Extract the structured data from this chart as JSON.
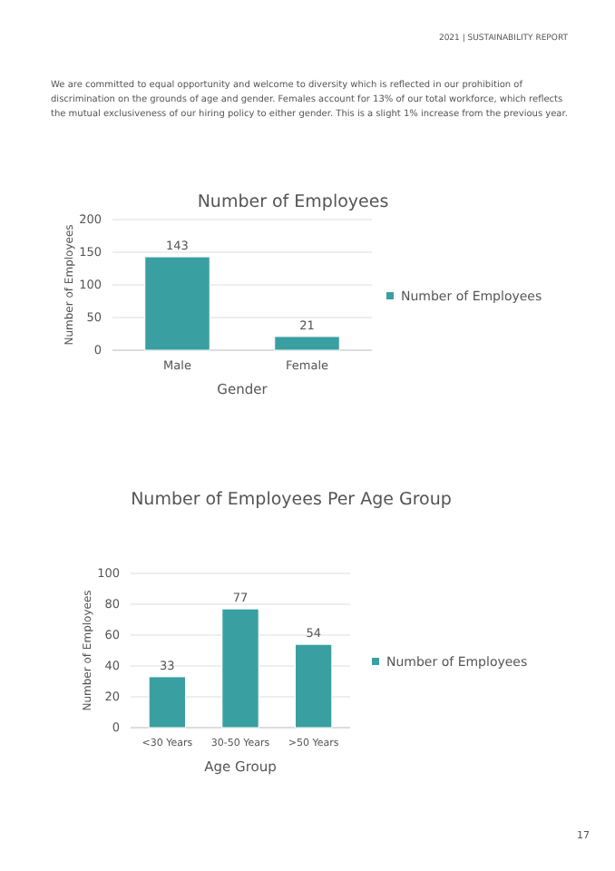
{
  "chart_data": [
    {
      "type": "bar",
      "title": "Number of Employees",
      "xlabel": "Gender",
      "ylabel": "Number of Employees",
      "categories": [
        "Male",
        "Female"
      ],
      "series": [
        {
          "name": "Number of Employees",
          "color": "#3a9fa0",
          "values": [
            143,
            21
          ]
        }
      ],
      "ylim": [
        0,
        200
      ],
      "yticks": [
        0,
        50,
        100,
        150,
        200
      ],
      "grid": "y",
      "legend": "right",
      "data_labels": true,
      "annotations": [
        "2021 | SUSTAINABILITY REPORT",
        "We are committed to equal opportunity and welcome to diversity which is reflected in our prohibition of discrimination on the grounds of age and gender. Females account for 13% of our total workforce, which reflects the mutual exclusiveness of our hiring policy to either gender. This is a slight 1% increase from the previous year."
      ]
    },
    {
      "type": "bar",
      "title": "Number of Employees Per Age Group",
      "xlabel": "Age Group",
      "ylabel": "Number of Employees",
      "categories": [
        "<30 Years",
        "30-50 Years",
        ">50 Years"
      ],
      "series": [
        {
          "name": "Number of Employees",
          "color": "#3a9fa0",
          "values": [
            33,
            77,
            54
          ]
        }
      ],
      "ylim": [
        0,
        100
      ],
      "yticks": [
        0,
        20,
        40,
        60,
        80,
        100
      ],
      "grid": "y",
      "legend": "right",
      "data_labels": true,
      "annotations": [
        "17"
      ]
    }
  ]
}
